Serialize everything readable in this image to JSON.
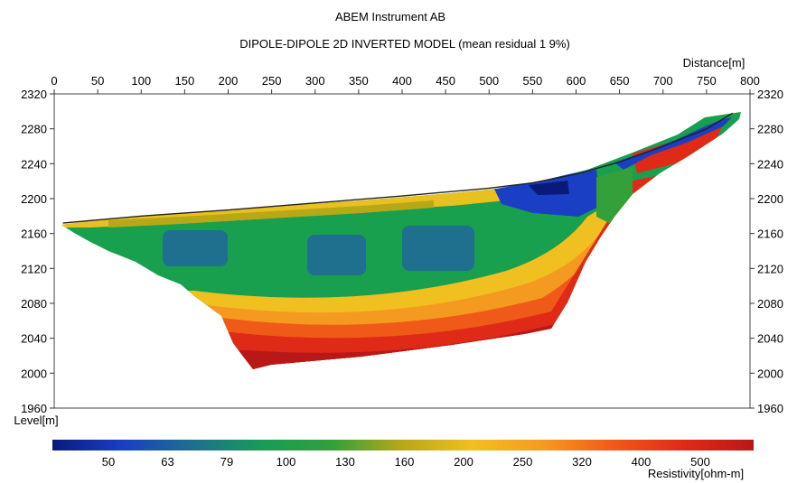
{
  "header": {
    "company": "ABEM Instrument AB",
    "title": "DIPOLE-DIPOLE 2D INVERTED MODEL (mean residual 1 9%)"
  },
  "chart_data": {
    "type": "heatmap",
    "title": "DIPOLE-DIPOLE 2D INVERTED MODEL (mean residual 1 9%)",
    "xlabel": "Distance[m]",
    "ylabel": "Level[m]",
    "xlim": [
      0,
      800
    ],
    "ylim": [
      1960,
      2320
    ],
    "x_ticks": [
      "0",
      "50",
      "100",
      "150",
      "200",
      "250",
      "300",
      "350",
      "400",
      "450",
      "500",
      "550",
      "600",
      "650",
      "700",
      "750",
      "800"
    ],
    "y_ticks": [
      "2320",
      "2280",
      "2240",
      "2200",
      "2160",
      "2120",
      "2080",
      "2040",
      "2000",
      "1960"
    ],
    "colorbar": {
      "label": "Resistivity[ohm-m]",
      "ticks": [
        "50",
        "63",
        "79",
        "100",
        "130",
        "160",
        "200",
        "250",
        "320",
        "400",
        "500"
      ],
      "colors": [
        "#0a1a7a",
        "#1a3fc4",
        "#1f6f8e",
        "#179c58",
        "#33a03a",
        "#b8a818",
        "#f0c020",
        "#f59a20",
        "#f05a18",
        "#e02a18",
        "#b81818"
      ]
    },
    "surface_profile": [
      {
        "x": 10,
        "z": 2172
      },
      {
        "x": 100,
        "z": 2180
      },
      {
        "x": 200,
        "z": 2187
      },
      {
        "x": 300,
        "z": 2195
      },
      {
        "x": 400,
        "z": 2203
      },
      {
        "x": 500,
        "z": 2212
      },
      {
        "x": 550,
        "z": 2218
      },
      {
        "x": 600,
        "z": 2228
      },
      {
        "x": 650,
        "z": 2242
      },
      {
        "x": 700,
        "z": 2260
      },
      {
        "x": 750,
        "z": 2280
      },
      {
        "x": 780,
        "z": 2298
      }
    ]
  }
}
